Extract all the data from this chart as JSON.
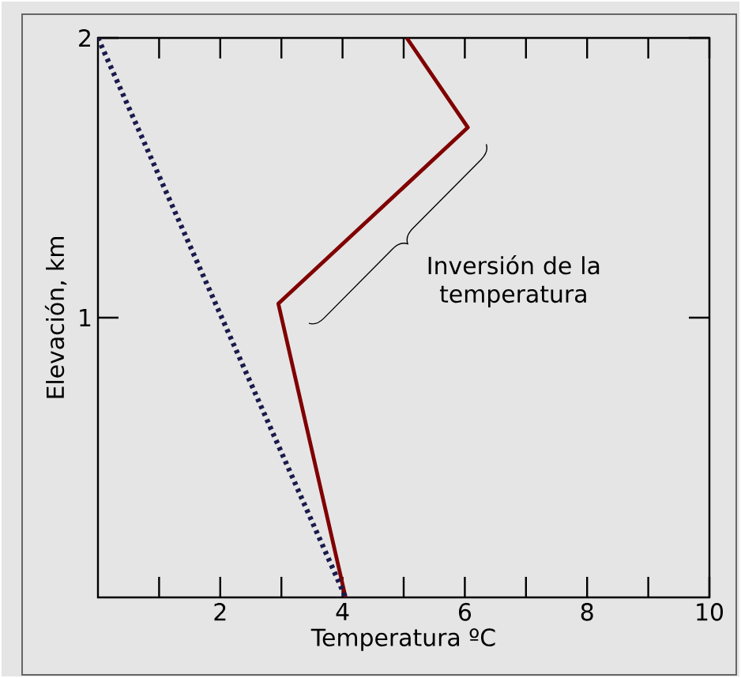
{
  "chart_data": {
    "type": "line",
    "xlabel": "Temperatura ºC",
    "ylabel": "Elevación, km",
    "xlim": [
      0,
      10
    ],
    "ylim": [
      0,
      2
    ],
    "xticks": [
      {
        "value": 1,
        "label": null
      },
      2,
      {
        "value": 3,
        "label": null
      },
      4,
      {
        "value": 5,
        "label": null
      },
      6,
      {
        "value": 7,
        "label": null
      },
      8,
      {
        "value": 9,
        "label": null
      },
      10
    ],
    "yticks": [
      1,
      2
    ],
    "series": [
      {
        "color": "#800000",
        "line_style": "solid",
        "x": [
          4.05,
          2.95,
          6.05,
          5.05
        ],
        "values": [
          0,
          1.05,
          1.68,
          2
        ]
      },
      {
        "color": "#1a1a4d",
        "line_style": "dotted",
        "x": [
          0,
          4.05
        ],
        "values": [
          2,
          0
        ]
      }
    ],
    "annotations": [
      "Inversión de la temperatura"
    ],
    "grid": false,
    "legend": false,
    "marker": "none"
  }
}
